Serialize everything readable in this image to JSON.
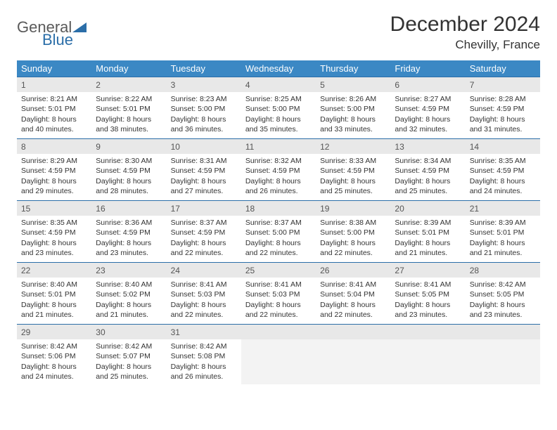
{
  "logo": {
    "general": "General",
    "blue": "Blue"
  },
  "title": "December 2024",
  "location": "Chevilly, France",
  "weekdays": [
    "Sunday",
    "Monday",
    "Tuesday",
    "Wednesday",
    "Thursday",
    "Friday",
    "Saturday"
  ],
  "colors": {
    "header_bg": "#3b88c4",
    "border": "#2b6ea8",
    "daynum_bg": "#e8e8e8",
    "text": "#333333"
  },
  "weeks": [
    [
      {
        "n": "1",
        "sr": "8:21 AM",
        "ss": "5:01 PM",
        "dl": "8 hours and 40 minutes."
      },
      {
        "n": "2",
        "sr": "8:22 AM",
        "ss": "5:01 PM",
        "dl": "8 hours and 38 minutes."
      },
      {
        "n": "3",
        "sr": "8:23 AM",
        "ss": "5:00 PM",
        "dl": "8 hours and 36 minutes."
      },
      {
        "n": "4",
        "sr": "8:25 AM",
        "ss": "5:00 PM",
        "dl": "8 hours and 35 minutes."
      },
      {
        "n": "5",
        "sr": "8:26 AM",
        "ss": "5:00 PM",
        "dl": "8 hours and 33 minutes."
      },
      {
        "n": "6",
        "sr": "8:27 AM",
        "ss": "4:59 PM",
        "dl": "8 hours and 32 minutes."
      },
      {
        "n": "7",
        "sr": "8:28 AM",
        "ss": "4:59 PM",
        "dl": "8 hours and 31 minutes."
      }
    ],
    [
      {
        "n": "8",
        "sr": "8:29 AM",
        "ss": "4:59 PM",
        "dl": "8 hours and 29 minutes."
      },
      {
        "n": "9",
        "sr": "8:30 AM",
        "ss": "4:59 PM",
        "dl": "8 hours and 28 minutes."
      },
      {
        "n": "10",
        "sr": "8:31 AM",
        "ss": "4:59 PM",
        "dl": "8 hours and 27 minutes."
      },
      {
        "n": "11",
        "sr": "8:32 AM",
        "ss": "4:59 PM",
        "dl": "8 hours and 26 minutes."
      },
      {
        "n": "12",
        "sr": "8:33 AM",
        "ss": "4:59 PM",
        "dl": "8 hours and 25 minutes."
      },
      {
        "n": "13",
        "sr": "8:34 AM",
        "ss": "4:59 PM",
        "dl": "8 hours and 25 minutes."
      },
      {
        "n": "14",
        "sr": "8:35 AM",
        "ss": "4:59 PM",
        "dl": "8 hours and 24 minutes."
      }
    ],
    [
      {
        "n": "15",
        "sr": "8:35 AM",
        "ss": "4:59 PM",
        "dl": "8 hours and 23 minutes."
      },
      {
        "n": "16",
        "sr": "8:36 AM",
        "ss": "4:59 PM",
        "dl": "8 hours and 23 minutes."
      },
      {
        "n": "17",
        "sr": "8:37 AM",
        "ss": "4:59 PM",
        "dl": "8 hours and 22 minutes."
      },
      {
        "n": "18",
        "sr": "8:37 AM",
        "ss": "5:00 PM",
        "dl": "8 hours and 22 minutes."
      },
      {
        "n": "19",
        "sr": "8:38 AM",
        "ss": "5:00 PM",
        "dl": "8 hours and 22 minutes."
      },
      {
        "n": "20",
        "sr": "8:39 AM",
        "ss": "5:01 PM",
        "dl": "8 hours and 21 minutes."
      },
      {
        "n": "21",
        "sr": "8:39 AM",
        "ss": "5:01 PM",
        "dl": "8 hours and 21 minutes."
      }
    ],
    [
      {
        "n": "22",
        "sr": "8:40 AM",
        "ss": "5:01 PM",
        "dl": "8 hours and 21 minutes."
      },
      {
        "n": "23",
        "sr": "8:40 AM",
        "ss": "5:02 PM",
        "dl": "8 hours and 21 minutes."
      },
      {
        "n": "24",
        "sr": "8:41 AM",
        "ss": "5:03 PM",
        "dl": "8 hours and 22 minutes."
      },
      {
        "n": "25",
        "sr": "8:41 AM",
        "ss": "5:03 PM",
        "dl": "8 hours and 22 minutes."
      },
      {
        "n": "26",
        "sr": "8:41 AM",
        "ss": "5:04 PM",
        "dl": "8 hours and 22 minutes."
      },
      {
        "n": "27",
        "sr": "8:41 AM",
        "ss": "5:05 PM",
        "dl": "8 hours and 23 minutes."
      },
      {
        "n": "28",
        "sr": "8:42 AM",
        "ss": "5:05 PM",
        "dl": "8 hours and 23 minutes."
      }
    ],
    [
      {
        "n": "29",
        "sr": "8:42 AM",
        "ss": "5:06 PM",
        "dl": "8 hours and 24 minutes."
      },
      {
        "n": "30",
        "sr": "8:42 AM",
        "ss": "5:07 PM",
        "dl": "8 hours and 25 minutes."
      },
      {
        "n": "31",
        "sr": "8:42 AM",
        "ss": "5:08 PM",
        "dl": "8 hours and 26 minutes."
      },
      {
        "empty": true
      },
      {
        "empty": true
      },
      {
        "empty": true
      },
      {
        "empty": true
      }
    ]
  ],
  "labels": {
    "sunrise": "Sunrise: ",
    "sunset": "Sunset: ",
    "daylight": "Daylight: "
  }
}
